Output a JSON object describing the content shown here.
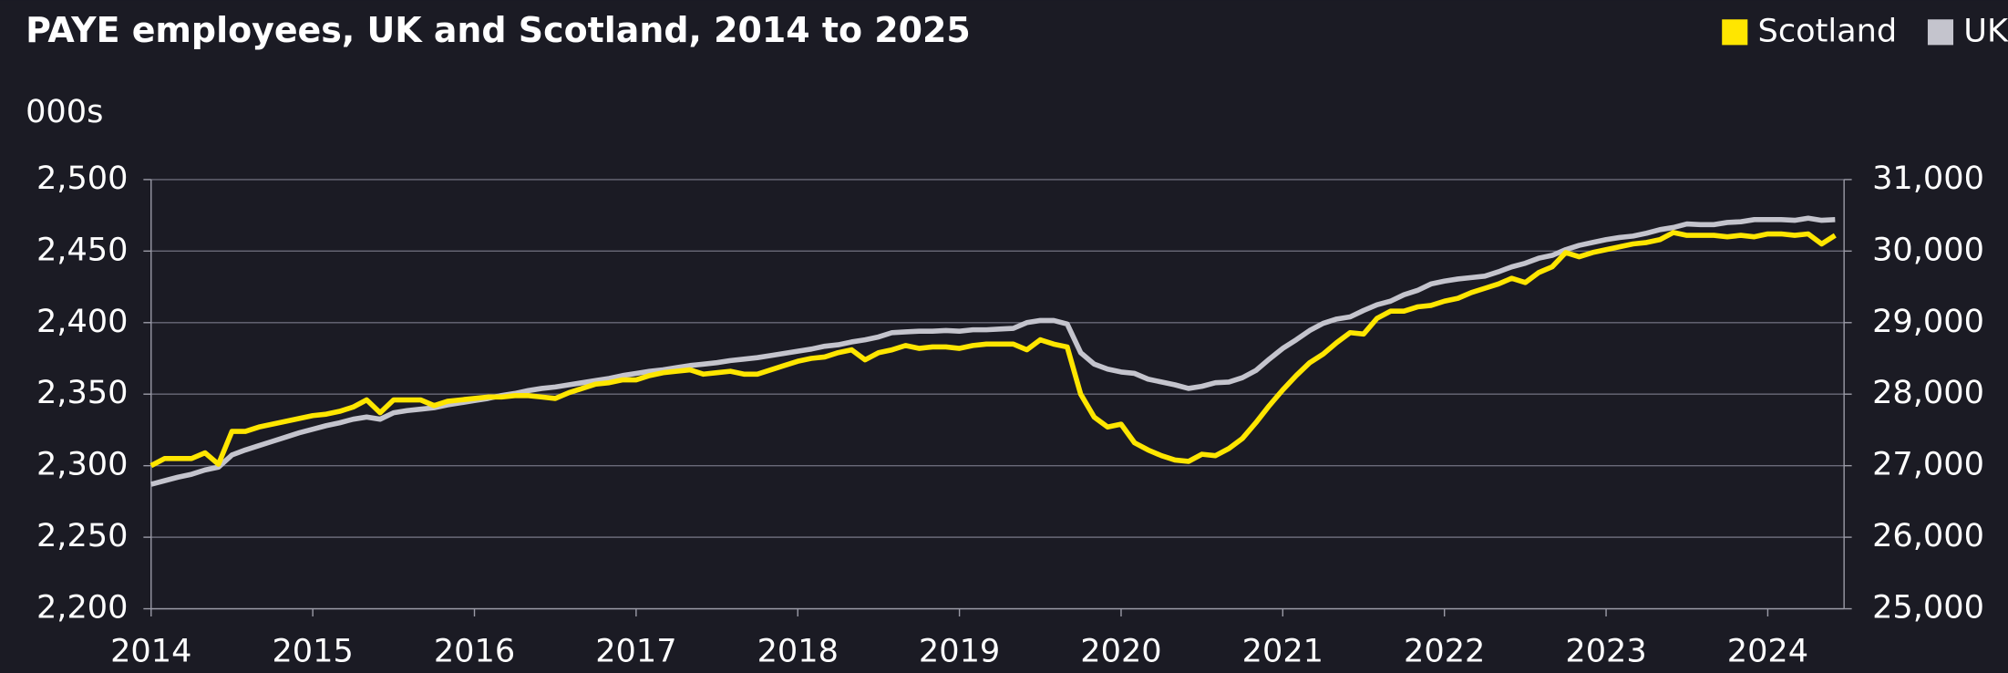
{
  "chart_data": {
    "type": "line",
    "title": "PAYE employees, UK and Scotland, 2014 to 2025",
    "y_label": "000s",
    "legend": "top-right",
    "grid": true,
    "categories": [
      "2014",
      null,
      null,
      null,
      null,
      null,
      null,
      null,
      null,
      null,
      null,
      null,
      "2015",
      null,
      null,
      null,
      null,
      null,
      null,
      null,
      null,
      null,
      null,
      null,
      "2016",
      null,
      null,
      null,
      null,
      null,
      null,
      null,
      null,
      null,
      null,
      null,
      "2017",
      null,
      null,
      null,
      null,
      null,
      null,
      null,
      null,
      null,
      null,
      null,
      "2018",
      null,
      null,
      null,
      null,
      null,
      null,
      null,
      null,
      null,
      null,
      null,
      "2019",
      null,
      null,
      null,
      null,
      null,
      null,
      null,
      null,
      null,
      null,
      null,
      "2020",
      null,
      null,
      null,
      null,
      null,
      null,
      null,
      null,
      null,
      null,
      null,
      "2021",
      null,
      null,
      null,
      null,
      null,
      null,
      null,
      null,
      null,
      null,
      null,
      "2022",
      null,
      null,
      null,
      null,
      null,
      null,
      null,
      null,
      null,
      null,
      null,
      "2023",
      null,
      null,
      null,
      null,
      null,
      null,
      null,
      null,
      null,
      null,
      null,
      "2024",
      null,
      null,
      null,
      null,
      null
    ],
    "ylim": [
      2200,
      2500
    ],
    "yticks": [
      {
        "value": 2200,
        "label": "2,200"
      },
      {
        "value": 2250,
        "label": "2,250"
      },
      {
        "value": 2300,
        "label": "2,300"
      },
      {
        "value": 2350,
        "label": "2,350"
      },
      {
        "value": 2400,
        "label": "2,400"
      },
      {
        "value": 2450,
        "label": "2,450"
      },
      {
        "value": 2500,
        "label": "2,500"
      }
    ],
    "y2lim": [
      25000,
      31000
    ],
    "y2ticks": [
      {
        "value": 25000,
        "label": "25,000"
      },
      {
        "value": 26000,
        "label": "26,000"
      },
      {
        "value": 27000,
        "label": "27,000"
      },
      {
        "value": 28000,
        "label": "28,000"
      },
      {
        "value": 29000,
        "label": "29,000"
      },
      {
        "value": 30000,
        "label": "30,000"
      },
      {
        "value": 31000,
        "label": "31,000"
      }
    ],
    "series": [
      {
        "name": "Scotland",
        "color": "#ffe600",
        "axis": "y",
        "values": [
          2300,
          2305,
          2305,
          2305,
          2309,
          2301,
          2324,
          2324,
          2327,
          2329,
          2331,
          2333,
          2335,
          2336,
          2338,
          2341,
          2346,
          2337,
          2346,
          2346,
          2346,
          2342,
          2345,
          2346,
          2347,
          2348,
          2348,
          2349,
          2349,
          2348,
          2347,
          2351,
          2354,
          2357,
          2358,
          2360,
          2360,
          2363,
          2365,
          2366,
          2367,
          2364,
          2365,
          2366,
          2364,
          2364,
          2367,
          2370,
          2373,
          2375,
          2376,
          2379,
          2381,
          2374,
          2379,
          2381,
          2384,
          2382,
          2383,
          2383,
          2382,
          2384,
          2385,
          2385,
          2385,
          2381,
          2388,
          2385,
          2383,
          2350,
          2334,
          2327,
          2329,
          2316,
          2311,
          2307,
          2304,
          2303,
          2308,
          2307,
          2312,
          2319,
          2330,
          2342,
          2353,
          2363,
          2372,
          2378,
          2386,
          2393,
          2392,
          2403,
          2408,
          2408,
          2411,
          2412,
          2415,
          2417,
          2421,
          2424,
          2427,
          2431,
          2428,
          2435,
          2439,
          2449,
          2446,
          2449,
          2451,
          2453,
          2455,
          2456,
          2458,
          2463,
          2461,
          2461,
          2461,
          2460,
          2461,
          2460,
          2462,
          2462,
          2461,
          2462,
          2455,
          2461
        ]
      },
      {
        "name": "UK",
        "color": "#c4c4cd",
        "axis": "y2",
        "values": [
          26740,
          26790,
          26840,
          26880,
          26940,
          26980,
          27150,
          27220,
          27280,
          27340,
          27400,
          27460,
          27510,
          27560,
          27600,
          27650,
          27680,
          27650,
          27740,
          27770,
          27790,
          27810,
          27850,
          27880,
          27910,
          27940,
          27980,
          28010,
          28050,
          28080,
          28100,
          28130,
          28160,
          28190,
          28220,
          28260,
          28290,
          28320,
          28340,
          28370,
          28400,
          28420,
          28440,
          28470,
          28490,
          28510,
          28540,
          28570,
          28600,
          28630,
          28670,
          28690,
          28730,
          28760,
          28800,
          28860,
          28870,
          28880,
          28880,
          28890,
          28880,
          28900,
          28900,
          28910,
          28920,
          29000,
          29030,
          29030,
          28980,
          28580,
          28420,
          28350,
          28310,
          28290,
          28210,
          28170,
          28130,
          28080,
          28110,
          28160,
          28170,
          28230,
          28330,
          28490,
          28640,
          28760,
          28890,
          28990,
          29050,
          29080,
          29170,
          29250,
          29300,
          29390,
          29450,
          29540,
          29580,
          29610,
          29630,
          29650,
          29710,
          29780,
          29830,
          29900,
          29940,
          30020,
          30080,
          30120,
          30160,
          30190,
          30210,
          30250,
          30300,
          30330,
          30380,
          30370,
          30370,
          30400,
          30410,
          30440,
          30440,
          30440,
          30430,
          30460,
          30430,
          30440
        ]
      }
    ]
  }
}
